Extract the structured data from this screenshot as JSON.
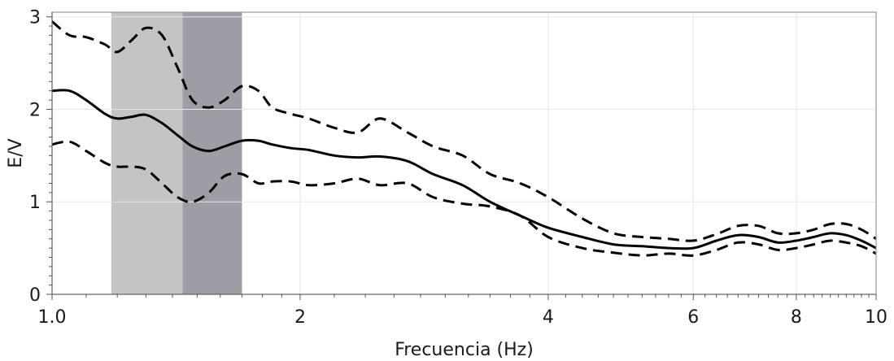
{
  "chart_data": {
    "type": "line",
    "title": "",
    "xlabel": "Frecuencia (Hz)",
    "ylabel": "E/V",
    "x_scale": "log",
    "xlim": [
      1.0,
      10
    ],
    "ylim": [
      0,
      3.05
    ],
    "x_ticks": [
      1.0,
      2,
      4,
      6,
      8,
      10
    ],
    "x_tick_labels": [
      "1.0",
      "2",
      "4",
      "6",
      "8",
      "10"
    ],
    "y_ticks": [
      0,
      1,
      2,
      3
    ],
    "y_tick_labels": [
      "0",
      "1",
      "2",
      "3"
    ],
    "grid": true,
    "legend": "none",
    "shaded_bands": [
      {
        "x_range": [
          1.18,
          1.44
        ],
        "color": "#c4c4c6"
      },
      {
        "x_range": [
          1.44,
          1.7
        ],
        "color": "#9d9da5"
      }
    ],
    "series": [
      {
        "style": "solid",
        "color": "#000000",
        "x": [
          1.0,
          1.05,
          1.1,
          1.16,
          1.2,
          1.25,
          1.3,
          1.36,
          1.42,
          1.48,
          1.55,
          1.62,
          1.7,
          1.78,
          1.85,
          1.95,
          2.05,
          2.2,
          2.35,
          2.5,
          2.7,
          2.9,
          3.15,
          3.4,
          3.7,
          4.0,
          4.4,
          4.8,
          5.2,
          5.6,
          6.0,
          6.4,
          6.8,
          7.2,
          7.6,
          8.0,
          8.4,
          8.8,
          9.2,
          9.6,
          10.0
        ],
        "y": [
          2.2,
          2.2,
          2.1,
          1.95,
          1.9,
          1.92,
          1.94,
          1.85,
          1.72,
          1.6,
          1.55,
          1.6,
          1.66,
          1.66,
          1.62,
          1.58,
          1.56,
          1.5,
          1.48,
          1.49,
          1.44,
          1.3,
          1.18,
          1.0,
          0.85,
          0.72,
          0.62,
          0.54,
          0.52,
          0.5,
          0.5,
          0.58,
          0.64,
          0.62,
          0.56,
          0.58,
          0.62,
          0.66,
          0.64,
          0.58,
          0.5
        ]
      },
      {
        "style": "dashed",
        "color": "#000000",
        "x": [
          1.0,
          1.05,
          1.1,
          1.16,
          1.2,
          1.25,
          1.3,
          1.36,
          1.42,
          1.48,
          1.55,
          1.62,
          1.7,
          1.78,
          1.85,
          1.95,
          2.05,
          2.2,
          2.35,
          2.5,
          2.7,
          2.9,
          3.15,
          3.4,
          3.7,
          4.0,
          4.4,
          4.8,
          5.2,
          5.6,
          6.0,
          6.4,
          6.8,
          7.2,
          7.6,
          8.0,
          8.4,
          8.8,
          9.2,
          9.6,
          10.0
        ],
        "y": [
          2.95,
          2.8,
          2.78,
          2.7,
          2.62,
          2.75,
          2.88,
          2.8,
          2.45,
          2.1,
          2.02,
          2.1,
          2.25,
          2.2,
          2.02,
          1.95,
          1.9,
          1.8,
          1.75,
          1.9,
          1.75,
          1.6,
          1.5,
          1.3,
          1.2,
          1.05,
          0.82,
          0.66,
          0.62,
          0.6,
          0.58,
          0.65,
          0.74,
          0.74,
          0.66,
          0.66,
          0.7,
          0.76,
          0.76,
          0.7,
          0.6
        ]
      },
      {
        "style": "dashed",
        "color": "#000000",
        "x": [
          1.0,
          1.05,
          1.1,
          1.16,
          1.2,
          1.25,
          1.3,
          1.36,
          1.42,
          1.48,
          1.55,
          1.62,
          1.7,
          1.78,
          1.85,
          1.95,
          2.05,
          2.2,
          2.35,
          2.5,
          2.7,
          2.9,
          3.15,
          3.4,
          3.7,
          4.0,
          4.4,
          4.8,
          5.2,
          5.6,
          6.0,
          6.4,
          6.8,
          7.2,
          7.6,
          8.0,
          8.4,
          8.8,
          9.2,
          9.6,
          10.0
        ],
        "y": [
          1.62,
          1.65,
          1.55,
          1.42,
          1.38,
          1.38,
          1.35,
          1.2,
          1.05,
          1.0,
          1.1,
          1.28,
          1.3,
          1.2,
          1.22,
          1.22,
          1.18,
          1.2,
          1.25,
          1.18,
          1.2,
          1.05,
          0.98,
          0.95,
          0.85,
          0.62,
          0.5,
          0.45,
          0.42,
          0.44,
          0.42,
          0.48,
          0.56,
          0.54,
          0.48,
          0.5,
          0.54,
          0.58,
          0.56,
          0.52,
          0.44
        ]
      }
    ]
  }
}
